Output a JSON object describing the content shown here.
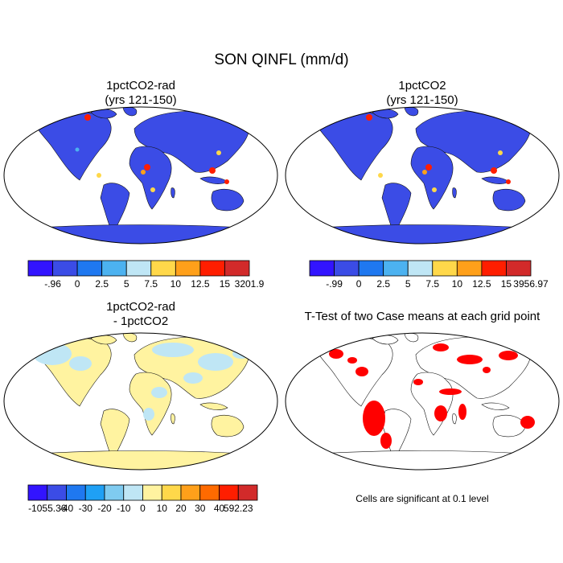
{
  "figure": {
    "title": "SON QINFL (mm/d)"
  },
  "panels": [
    {
      "title_line1": "1pctCO2-rad",
      "title_line2": "(yrs 121-150)"
    },
    {
      "title_line1": "1pctCO2",
      "title_line2": "(yrs 121-150)"
    },
    {
      "title_line1": "1pctCO2-rad",
      "title_line2": "- 1pctCO2"
    },
    {
      "title_line1": "T-Test of two Case means at each grid point",
      "title_line2": ""
    }
  ],
  "colorbars": [
    {
      "colors": [
        "#3214ff",
        "#3b4ce6",
        "#1f78f0",
        "#4cb2f0",
        "#bfe6f5",
        "#ffd84a",
        "#ffa01a",
        "#ff1e00",
        "#d22a2a"
      ],
      "labels": [
        "-.96",
        "0",
        "2.5",
        "5",
        "7.5",
        "10",
        "12.5",
        "15",
        "3201.9"
      ]
    },
    {
      "colors": [
        "#3214ff",
        "#3b4ce6",
        "#1f78f0",
        "#4cb2f0",
        "#bfe6f5",
        "#ffd84a",
        "#ffa01a",
        "#ff1e00",
        "#d22a2a"
      ],
      "labels": [
        "-.99",
        "0",
        "2.5",
        "5",
        "7.5",
        "10",
        "12.5",
        "15",
        "3956.97"
      ]
    },
    {
      "colors": [
        "#3214ff",
        "#3b4ce6",
        "#1f78f0",
        "#1fa0f5",
        "#7fcbf0",
        "#bfe6f5",
        "#fff3a0",
        "#ffd84a",
        "#ffa01a",
        "#ff6a00",
        "#ff1e00",
        "#d22a2a"
      ],
      "labels": [
        "-1055.36",
        "-40",
        "-30",
        "-20",
        "-10",
        "0",
        "10",
        "20",
        "30",
        "40",
        "592.23"
      ]
    }
  ],
  "ttest_note": "Cells are significant at 0.1 level",
  "map_colors": {
    "panel1_land": "#3b4ce6",
    "panel2_land": "#3b4ce6",
    "panel3_land": "#fff3a0",
    "panel3_patches": "#bfe6f5",
    "panel4_significant": "#ff0000"
  }
}
